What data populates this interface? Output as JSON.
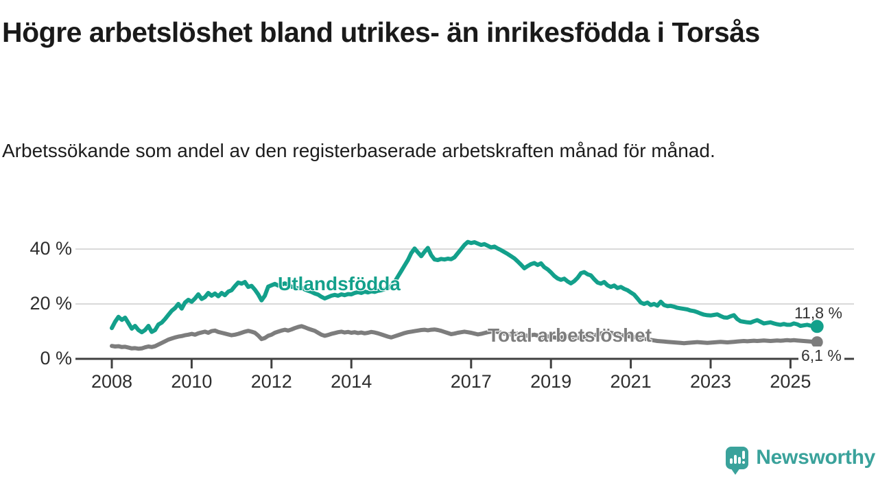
{
  "header": {
    "title": "Högre arbetslöshet bland utrikes- än inrikesfödda i Torsås",
    "subtitle": "Arbetssökande som andel av den registerbaserade arbetskraften månad för månad."
  },
  "footer": {
    "brand": "Newsworthy",
    "logo_icon": "newsworthy-speech-bubble-bar-chart-icon",
    "brand_color": "#3aa29b"
  },
  "colors": {
    "series_utlandsfodda": "#13a08b",
    "series_total": "#7d7d7d",
    "axis": "#404040",
    "gridline": "#d9d9d9",
    "tick_text": "#2e2e2e",
    "end_label_text": "#333333"
  },
  "chart_data": {
    "type": "line",
    "title": "Högre arbetslöshet bland utrikes- än inrikesfödda i Torsås",
    "subtitle": "Arbetssökande som andel av den registerbaserade arbetskraften månad för månad.",
    "x_frequency": "monthly",
    "x_start": "2008-01",
    "x_end": "2025-09",
    "x_tick_years": [
      2008,
      2010,
      2012,
      2014,
      2017,
      2019,
      2021,
      2023,
      2025
    ],
    "x_tick_labels": [
      "2008",
      "2010",
      "2012",
      "2014",
      "2017",
      "2019",
      "2021",
      "2023",
      "2025"
    ],
    "y_ticks": [
      {
        "value": 0,
        "label": "0 %"
      },
      {
        "value": 20,
        "label": "20 %"
      },
      {
        "value": 40,
        "label": "40 %"
      }
    ],
    "ylim": [
      0,
      45
    ],
    "grid": "horizontal",
    "legend_position": "inline-labels",
    "series": [
      {
        "name": "Utlandsfödda",
        "color": "#13a08b",
        "end_label": "11,8 %",
        "end_value": 11.8,
        "values": [
          11.2,
          13.5,
          15.3,
          14.2,
          15,
          13,
          11,
          12,
          10.5,
          9.7,
          10.5,
          12,
          9.8,
          10.5,
          12.5,
          13.2,
          14.5,
          16,
          17.5,
          18.5,
          20,
          18.3,
          20.5,
          21.5,
          20.8,
          22,
          23.5,
          21.8,
          22.5,
          24,
          23,
          23.8,
          22.8,
          24,
          23.2,
          24.5,
          25,
          26.5,
          27.8,
          27.4,
          28,
          26.2,
          26.6,
          25.2,
          23.5,
          21.3,
          23,
          26.3,
          26.8,
          27.3,
          26.7,
          27,
          27.5,
          27,
          26.3,
          26,
          25.6,
          25.9,
          25.3,
          24.8,
          24.4,
          23.8,
          23.4,
          22.6,
          22,
          22.5,
          23,
          23.3,
          23,
          23.5,
          23.2,
          23.6,
          23.5,
          24,
          24.3,
          24,
          24.5,
          24.2,
          24.6,
          24.4,
          24.8,
          25,
          25.4,
          25.8,
          26.5,
          28,
          30,
          32,
          34,
          36,
          38.5,
          40.2,
          38.8,
          37.4,
          39,
          40.4,
          37.8,
          36.2,
          36,
          36.4,
          36.2,
          36.5,
          36.3,
          37,
          38.5,
          40,
          41.5,
          42.6,
          42.2,
          42.5,
          42,
          41.5,
          41.8,
          41.2,
          40.6,
          40.9,
          40.2,
          39.6,
          38.9,
          38.2,
          37.4,
          36.6,
          35.5,
          34.3,
          33,
          33.8,
          34.5,
          34.9,
          34.2,
          34.8,
          33.4,
          32.6,
          31.5,
          30.2,
          29.3,
          28.8,
          29.2,
          28.2,
          27.5,
          28.3,
          29.5,
          31.2,
          31.6,
          30.8,
          30.4,
          29,
          27.8,
          27.4,
          28,
          26.8,
          26.2,
          26.7,
          25.8,
          26.2,
          25.5,
          25,
          24.2,
          23.4,
          22,
          20.5,
          20,
          20.5,
          19.6,
          20,
          19.4,
          20.8,
          19.6,
          19.2,
          19.3,
          19,
          18.6,
          18.4,
          18.2,
          18,
          17.6,
          17.4,
          17,
          16.5,
          16.1,
          15.9,
          15.8,
          16,
          16.2,
          15.6,
          15.1,
          15,
          15.5,
          15.9,
          14.5,
          13.7,
          13.5,
          13.3,
          13.2,
          13.7,
          14.1,
          13.5,
          12.9,
          13.1,
          13.3,
          12.9,
          12.6,
          12.4,
          12.7,
          12.4,
          12.4,
          12.9,
          12.6,
          12,
          12.2,
          12.4,
          12.1,
          11.9,
          11.8
        ]
      },
      {
        "name": "Total arbetslöshet",
        "color": "#7d7d7d",
        "end_label": "6,1 %",
        "end_value": 6.1,
        "values": [
          4.7,
          4.5,
          4.6,
          4.3,
          4.4,
          4.1,
          3.8,
          3.9,
          3.7,
          3.8,
          4.2,
          4.5,
          4.3,
          4.6,
          5.2,
          5.8,
          6.4,
          7,
          7.4,
          7.8,
          8.1,
          8.3,
          8.6,
          8.8,
          9.1,
          8.8,
          9.3,
          9.6,
          9.9,
          9.5,
          10.1,
          10.3,
          9.8,
          9.5,
          9.2,
          8.9,
          8.6,
          8.8,
          9.1,
          9.5,
          9.9,
          10.2,
          9.9,
          9.5,
          8.5,
          7.2,
          7.6,
          8.4,
          8.8,
          9.5,
          9.9,
          10.3,
          10.6,
          10.3,
          10.7,
          11.2,
          11.6,
          11.9,
          11.5,
          11,
          10.6,
          10.2,
          9.5,
          8.8,
          8.4,
          8.7,
          9.1,
          9.4,
          9.7,
          9.9,
          9.6,
          9.8,
          9.5,
          9.7,
          9.4,
          9.6,
          9.3,
          9.5,
          9.8,
          9.6,
          9.3,
          8.9,
          8.5,
          8.1,
          7.8,
          8.2,
          8.6,
          9,
          9.4,
          9.7,
          9.9,
          10.1,
          10.3,
          10.5,
          10.6,
          10.4,
          10.6,
          10.7,
          10.5,
          10.2,
          9.8,
          9.4,
          9,
          9.2,
          9.5,
          9.7,
          9.9,
          9.7,
          9.5,
          9.2,
          8.9,
          9.1,
          9.4,
          9.7,
          9.9,
          10.1,
          9.8,
          9.5,
          9.2,
          9,
          8.8,
          9,
          9.2,
          8.9,
          8.6,
          8.4,
          8.6,
          8.8,
          8.5,
          8.2,
          8,
          8.2,
          8,
          7.8,
          7.6,
          7.8,
          8,
          8.2,
          8,
          7.8,
          7.6,
          7.8,
          8,
          8.2,
          8.4,
          8.6,
          8.9,
          9.2,
          9.5,
          9.7,
          9.5,
          9.2,
          9,
          8.7,
          8.5,
          8.3,
          8.1,
          7.9,
          7.7,
          7.5,
          7.3,
          7.1,
          6.9,
          6.7,
          6.5,
          6.4,
          6.3,
          6.2,
          6.1,
          6,
          5.9,
          5.8,
          5.7,
          5.8,
          5.9,
          6,
          6.1,
          6,
          5.9,
          5.8,
          5.9,
          6,
          6.1,
          6.2,
          6.1,
          6,
          6.1,
          6.2,
          6.3,
          6.4,
          6.5,
          6.4,
          6.5,
          6.6,
          6.5,
          6.6,
          6.7,
          6.6,
          6.5,
          6.6,
          6.7,
          6.6,
          6.7,
          6.8,
          6.7,
          6.8,
          6.7,
          6.6,
          6.5,
          6.4,
          6.3,
          6.2,
          6.1
        ]
      }
    ]
  }
}
